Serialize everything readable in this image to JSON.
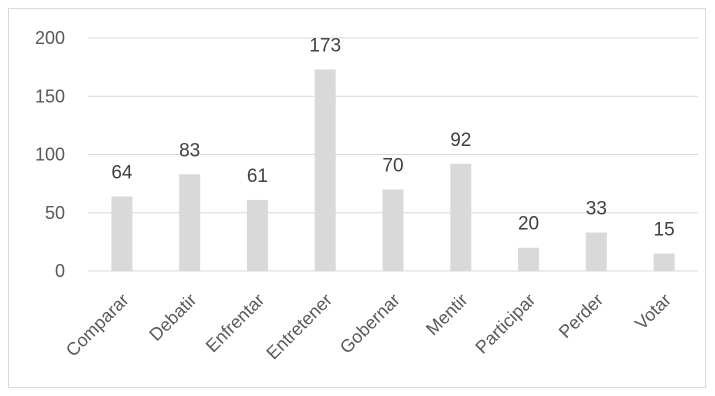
{
  "chart_data": {
    "type": "bar",
    "title": "",
    "xlabel": "",
    "ylabel": "",
    "categories": [
      "Comparar",
      "Debatir",
      "Enfrentar",
      "Entretener",
      "Gobernar",
      "Mentir",
      "Participar",
      "Perder",
      "Votar"
    ],
    "values": [
      64,
      83,
      61,
      173,
      70,
      92,
      20,
      33,
      15
    ],
    "ylim": [
      0,
      200
    ],
    "yticks": [
      0,
      50,
      100,
      150,
      200
    ],
    "grid": true,
    "legend": "none",
    "data_labels": true,
    "bar_color": "#d9d9d9",
    "grid_color": "#d9d9d9"
  }
}
